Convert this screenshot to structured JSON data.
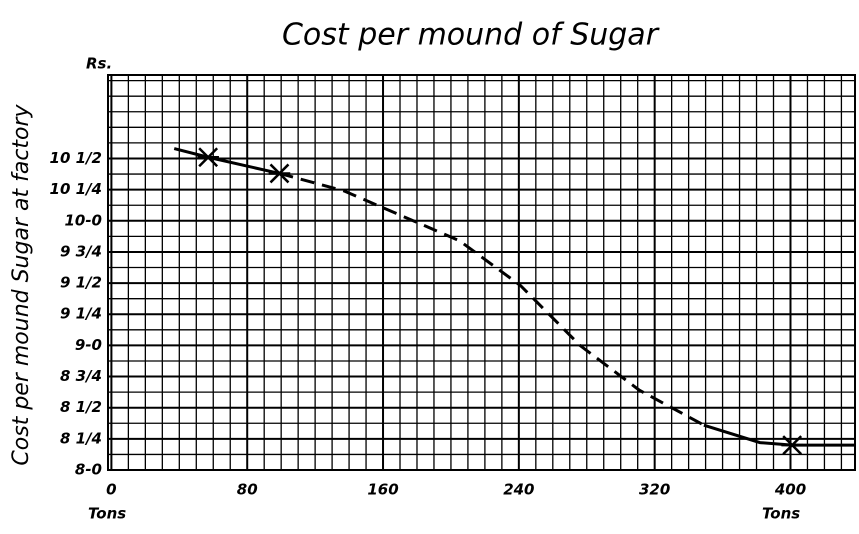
{
  "chart_data": {
    "type": "line",
    "title": "Cost per mound of Sugar",
    "y_label": "Cost per mound Sugar at factory",
    "annotations": {
      "y_unit": "Rs.",
      "x_unit_left": "Tons",
      "x_unit_right": "Tons"
    },
    "xlim": [
      -2,
      438
    ],
    "xticks": [
      0,
      80,
      160,
      240,
      320,
      400
    ],
    "ylim": [
      8,
      11.17
    ],
    "yticks": [
      {
        "value": 8,
        "label": "8-0"
      },
      {
        "value": 8.25,
        "label": "8 1/4"
      },
      {
        "value": 8.5,
        "label": "8 1/2"
      },
      {
        "value": 8.75,
        "label": "8 3/4"
      },
      {
        "value": 9,
        "label": "9-0"
      },
      {
        "value": 9.25,
        "label": "9 1/4"
      },
      {
        "value": 9.5,
        "label": "9 1/2"
      },
      {
        "value": 9.75,
        "label": "9 3/4"
      },
      {
        "value": 10,
        "label": "10-0"
      },
      {
        "value": 10.25,
        "label": "10 1/4"
      },
      {
        "value": 10.5,
        "label": "10 1/2"
      }
    ],
    "grid": true,
    "minor_grid": {
      "x_step": 10,
      "y_step": 0.125
    },
    "series": [
      {
        "color": "#000000",
        "dashed": false,
        "x": [
          37,
          57,
          99
        ],
        "values": [
          10.58,
          10.51,
          10.38
        ]
      },
      {
        "color": "#000000",
        "dashed": true,
        "x": [
          99,
          137,
          205,
          241,
          276,
          311,
          349
        ],
        "values": [
          10.38,
          10.24,
          9.84,
          9.48,
          9.0,
          8.64,
          8.36
        ]
      },
      {
        "color": "#000000",
        "dashed": false,
        "x": [
          349,
          382,
          401,
          438
        ],
        "values": [
          8.36,
          8.22,
          8.2,
          8.2
        ]
      },
      {
        "color": "#000000",
        "marker": "star",
        "x": [
          57,
          99,
          401
        ],
        "values": [
          10.51,
          10.38,
          8.2
        ]
      }
    ]
  }
}
